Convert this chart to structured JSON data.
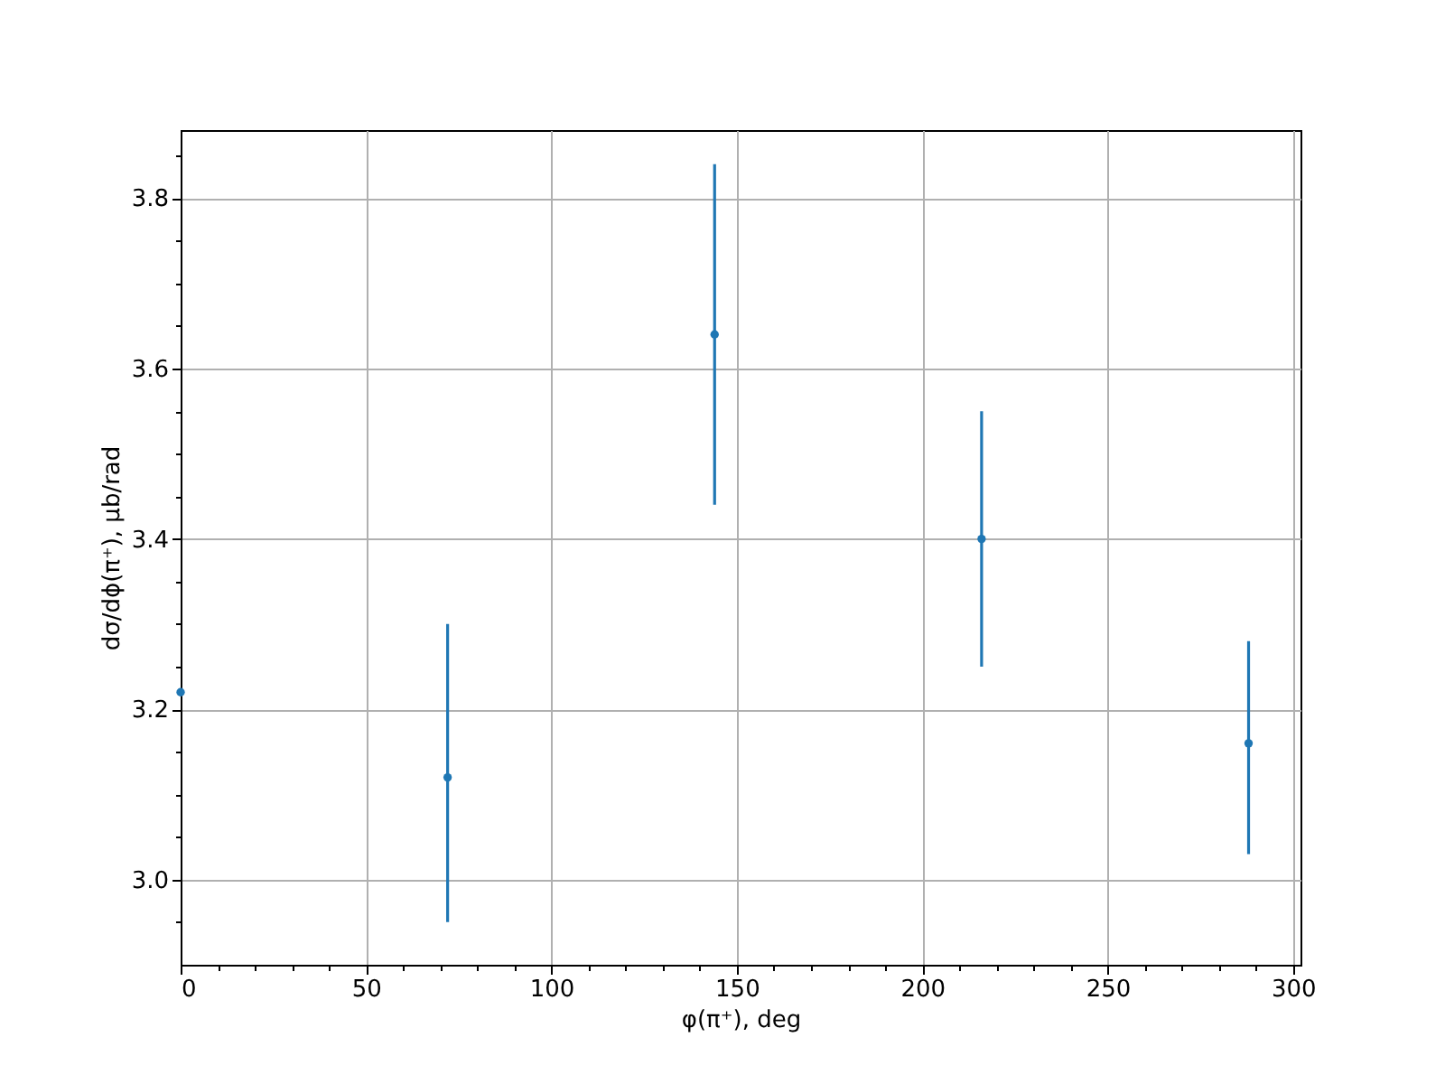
{
  "chart_data": {
    "type": "scatter",
    "xlabel": "φ(π⁺), deg",
    "ylabel": "dσ/dϕ(π⁺), μb/rad",
    "x": [
      0,
      72,
      144,
      216,
      288
    ],
    "series": [
      {
        "color": "#1f77b4",
        "values": [
          3.22,
          3.12,
          3.64,
          3.4,
          3.16
        ],
        "errors": [
          null,
          [
            2.95,
            3.3
          ],
          [
            3.44,
            3.84
          ],
          [
            3.25,
            3.55
          ],
          [
            3.03,
            3.28
          ]
        ]
      }
    ],
    "xlim": [
      0,
      302
    ],
    "xticks": [
      0,
      {
        "value": 10,
        "label": null
      },
      {
        "value": 20,
        "label": null
      },
      {
        "value": 30,
        "label": null
      },
      {
        "value": 40,
        "label": null
      },
      50,
      {
        "value": 60,
        "label": null
      },
      {
        "value": 70,
        "label": null
      },
      {
        "value": 80,
        "label": null
      },
      {
        "value": 90,
        "label": null
      },
      100,
      {
        "value": 110,
        "label": null
      },
      {
        "value": 120,
        "label": null
      },
      {
        "value": 130,
        "label": null
      },
      {
        "value": 140,
        "label": null
      },
      150,
      {
        "value": 160,
        "label": null
      },
      {
        "value": 170,
        "label": null
      },
      {
        "value": 180,
        "label": null
      },
      {
        "value": 190,
        "label": null
      },
      200,
      {
        "value": 210,
        "label": null
      },
      {
        "value": 220,
        "label": null
      },
      {
        "value": 230,
        "label": null
      },
      {
        "value": 240,
        "label": null
      },
      250,
      {
        "value": 260,
        "label": null
      },
      {
        "value": 270,
        "label": null
      },
      {
        "value": 280,
        "label": null
      },
      {
        "value": 290,
        "label": null
      },
      300
    ],
    "ylim": [
      2.9,
      3.88
    ],
    "yticks": [
      {
        "value": 2.95,
        "label": null
      },
      {
        "value": 3,
        "label": "3.0"
      },
      {
        "value": 3.05,
        "label": null
      },
      {
        "value": 3.1,
        "label": null
      },
      {
        "value": 3.15,
        "label": null
      },
      3.2,
      {
        "value": 3.25,
        "label": null
      },
      {
        "value": 3.3,
        "label": null
      },
      {
        "value": 3.35,
        "label": null
      },
      3.4,
      {
        "value": 3.45,
        "label": null
      },
      {
        "value": 3.5,
        "label": null
      },
      {
        "value": 3.55,
        "label": null
      },
      3.6,
      {
        "value": 3.65,
        "label": null
      },
      {
        "value": 3.7,
        "label": null
      },
      {
        "value": 3.75,
        "label": null
      },
      3.8,
      {
        "value": 3.85,
        "label": null
      }
    ],
    "grid": true,
    "marker": "circle"
  }
}
